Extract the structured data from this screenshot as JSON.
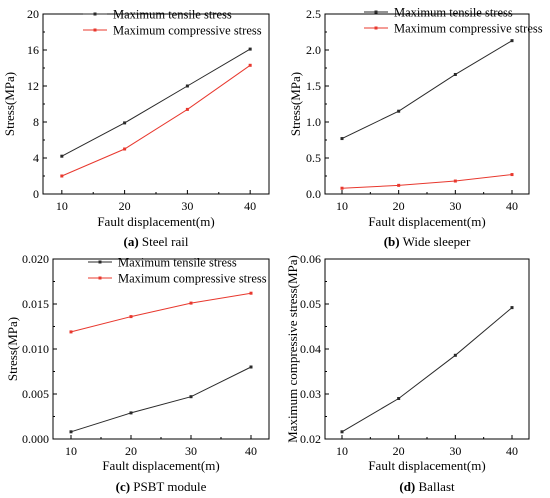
{
  "chart_data": [
    {
      "panel_id": "a",
      "type": "line",
      "caption_letter": "(a)",
      "caption_text": "Steel rail",
      "xlabel": "Fault displacement(m)",
      "ylabel": "Stress(MPa)",
      "x": [
        10,
        20,
        30,
        40
      ],
      "xlim": [
        7,
        43
      ],
      "ylim": [
        0,
        20
      ],
      "xticks": [
        "10",
        "20",
        "30",
        "40"
      ],
      "yticks": [
        "0",
        "4",
        "8",
        "12",
        "16",
        "20"
      ],
      "legend_position": "top-right",
      "series": [
        {
          "name": "Maximum tensile stress",
          "color": "#2a2a2a",
          "values": [
            4.2,
            7.9,
            12.0,
            16.1
          ]
        },
        {
          "name": "Maximum compressive stress",
          "color": "#e8382e",
          "values": [
            2.0,
            5.0,
            9.4,
            14.3
          ]
        }
      ]
    },
    {
      "panel_id": "b",
      "type": "line",
      "caption_letter": "(b)",
      "caption_text": "Wide sleeper",
      "xlabel": "Fault displacement(m)",
      "ylabel": "Stress(MPa)",
      "x": [
        10,
        20,
        30,
        40
      ],
      "xlim": [
        7,
        43
      ],
      "ylim": [
        0,
        2.5
      ],
      "xticks": [
        "10",
        "20",
        "30",
        "40"
      ],
      "yticks": [
        "0.0",
        "0.5",
        "1.0",
        "1.5",
        "2.0",
        "2.5"
      ],
      "legend_position": "top-right",
      "series": [
        {
          "name": "Maximum tensile stress",
          "color": "#2a2a2a",
          "values": [
            0.77,
            1.15,
            1.66,
            2.13
          ]
        },
        {
          "name": "Maximum compressive stress",
          "color": "#e8382e",
          "values": [
            0.08,
            0.12,
            0.18,
            0.27
          ]
        }
      ]
    },
    {
      "panel_id": "c",
      "type": "line",
      "caption_letter": "(c)",
      "caption_text": "PSBT module",
      "xlabel": "Fault displacement(m)",
      "ylabel": "Stress(MPa)",
      "x": [
        10,
        20,
        30,
        40
      ],
      "xlim": [
        7,
        43
      ],
      "ylim": [
        0,
        0.02
      ],
      "xticks": [
        "10",
        "20",
        "30",
        "40"
      ],
      "yticks": [
        "0.000",
        "0.005",
        "0.010",
        "0.015",
        "0.020"
      ],
      "legend_position": "top-right",
      "series": [
        {
          "name": "Maximum tensile stress",
          "color": "#2a2a2a",
          "values": [
            0.0008,
            0.0029,
            0.0047,
            0.008
          ]
        },
        {
          "name": "Maximum compressive stress",
          "color": "#e8382e",
          "values": [
            0.0119,
            0.0136,
            0.0151,
            0.0162
          ]
        }
      ]
    },
    {
      "panel_id": "d",
      "type": "line",
      "caption_letter": "(d)",
      "caption_text": "Ballast",
      "xlabel": "Fault displacement(m)",
      "ylabel": "Maximum compressive stress(MPa)",
      "x": [
        10,
        20,
        30,
        40
      ],
      "xlim": [
        7,
        43
      ],
      "ylim": [
        0.02,
        0.06
      ],
      "xticks": [
        "10",
        "20",
        "30",
        "40"
      ],
      "yticks": [
        "0.02",
        "0.03",
        "0.04",
        "0.05",
        "0.06"
      ],
      "legend_position": "none",
      "series": [
        {
          "color": "#2a2a2a",
          "values": [
            0.0216,
            0.029,
            0.0386,
            0.0492
          ]
        }
      ]
    }
  ]
}
